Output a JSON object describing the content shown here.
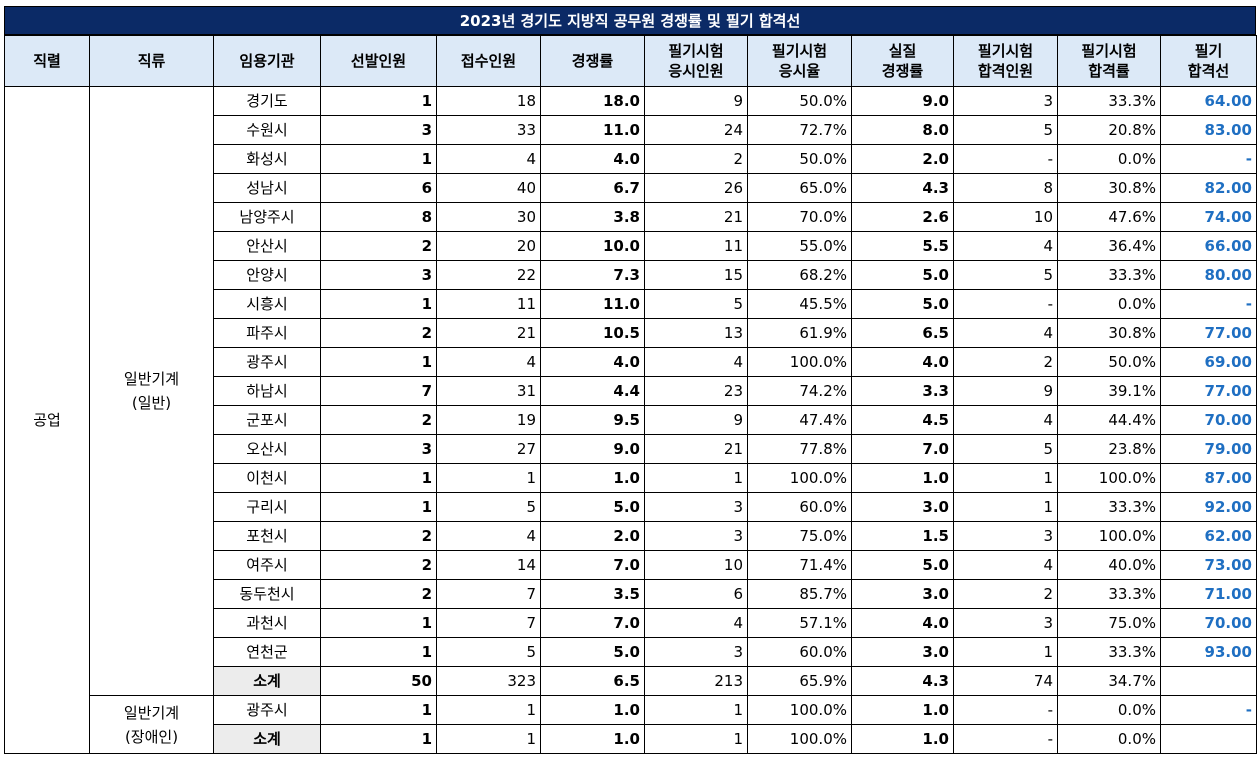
{
  "title": "2023년 경기도 지방직 공무원 경쟁률 및 필기 합격선",
  "headers": [
    [
      "직렬"
    ],
    [
      "직류"
    ],
    [
      "임용기관"
    ],
    [
      "선발인원"
    ],
    [
      "접수인원"
    ],
    [
      "경쟁률"
    ],
    [
      "필기시험",
      "응시인원"
    ],
    [
      "필기시험",
      "응시율"
    ],
    [
      "실질",
      "경쟁률"
    ],
    [
      "필기시험",
      "합격인원"
    ],
    [
      "필기시험",
      "합격률"
    ],
    [
      "필기",
      "합격선"
    ]
  ],
  "series_label": "공업",
  "groups": [
    {
      "label": [
        "일반기계",
        "(일반)"
      ],
      "rows": [
        [
          "경기도",
          "1",
          "18",
          "18.0",
          "9",
          "50.0%",
          "9.0",
          "3",
          "33.3%",
          "64.00"
        ],
        [
          "수원시",
          "3",
          "33",
          "11.0",
          "24",
          "72.7%",
          "8.0",
          "5",
          "20.8%",
          "83.00"
        ],
        [
          "화성시",
          "1",
          "4",
          "4.0",
          "2",
          "50.0%",
          "2.0",
          "-",
          "0.0%",
          "-"
        ],
        [
          "성남시",
          "6",
          "40",
          "6.7",
          "26",
          "65.0%",
          "4.3",
          "8",
          "30.8%",
          "82.00"
        ],
        [
          "남양주시",
          "8",
          "30",
          "3.8",
          "21",
          "70.0%",
          "2.6",
          "10",
          "47.6%",
          "74.00"
        ],
        [
          "안산시",
          "2",
          "20",
          "10.0",
          "11",
          "55.0%",
          "5.5",
          "4",
          "36.4%",
          "66.00"
        ],
        [
          "안양시",
          "3",
          "22",
          "7.3",
          "15",
          "68.2%",
          "5.0",
          "5",
          "33.3%",
          "80.00"
        ],
        [
          "시흥시",
          "1",
          "11",
          "11.0",
          "5",
          "45.5%",
          "5.0",
          "-",
          "0.0%",
          "-"
        ],
        [
          "파주시",
          "2",
          "21",
          "10.5",
          "13",
          "61.9%",
          "6.5",
          "4",
          "30.8%",
          "77.00"
        ],
        [
          "광주시",
          "1",
          "4",
          "4.0",
          "4",
          "100.0%",
          "4.0",
          "2",
          "50.0%",
          "69.00"
        ],
        [
          "하남시",
          "7",
          "31",
          "4.4",
          "23",
          "74.2%",
          "3.3",
          "9",
          "39.1%",
          "77.00"
        ],
        [
          "군포시",
          "2",
          "19",
          "9.5",
          "9",
          "47.4%",
          "4.5",
          "4",
          "44.4%",
          "70.00"
        ],
        [
          "오산시",
          "3",
          "27",
          "9.0",
          "21",
          "77.8%",
          "7.0",
          "5",
          "23.8%",
          "79.00"
        ],
        [
          "이천시",
          "1",
          "1",
          "1.0",
          "1",
          "100.0%",
          "1.0",
          "1",
          "100.0%",
          "87.00"
        ],
        [
          "구리시",
          "1",
          "5",
          "5.0",
          "3",
          "60.0%",
          "3.0",
          "1",
          "33.3%",
          "92.00"
        ],
        [
          "포천시",
          "2",
          "4",
          "2.0",
          "3",
          "75.0%",
          "1.5",
          "3",
          "100.0%",
          "62.00"
        ],
        [
          "여주시",
          "2",
          "14",
          "7.0",
          "10",
          "71.4%",
          "5.0",
          "4",
          "40.0%",
          "73.00"
        ],
        [
          "동두천시",
          "2",
          "7",
          "3.5",
          "6",
          "85.7%",
          "3.0",
          "2",
          "33.3%",
          "71.00"
        ],
        [
          "과천시",
          "1",
          "7",
          "7.0",
          "4",
          "57.1%",
          "4.0",
          "3",
          "75.0%",
          "70.00"
        ],
        [
          "연천군",
          "1",
          "5",
          "5.0",
          "3",
          "60.0%",
          "3.0",
          "1",
          "33.3%",
          "93.00"
        ]
      ],
      "subtotal": [
        "소계",
        "50",
        "323",
        "6.5",
        "213",
        "65.9%",
        "4.3",
        "74",
        "34.7%",
        ""
      ]
    },
    {
      "label": [
        "일반기계",
        "(장애인)"
      ],
      "rows": [
        [
          "광주시",
          "1",
          "1",
          "1.0",
          "1",
          "100.0%",
          "1.0",
          "-",
          "0.0%",
          "-"
        ]
      ],
      "subtotal": [
        "소계",
        "1",
        "1",
        "1.0",
        "1",
        "100.0%",
        "1.0",
        "-",
        "0.0%",
        ""
      ]
    }
  ]
}
